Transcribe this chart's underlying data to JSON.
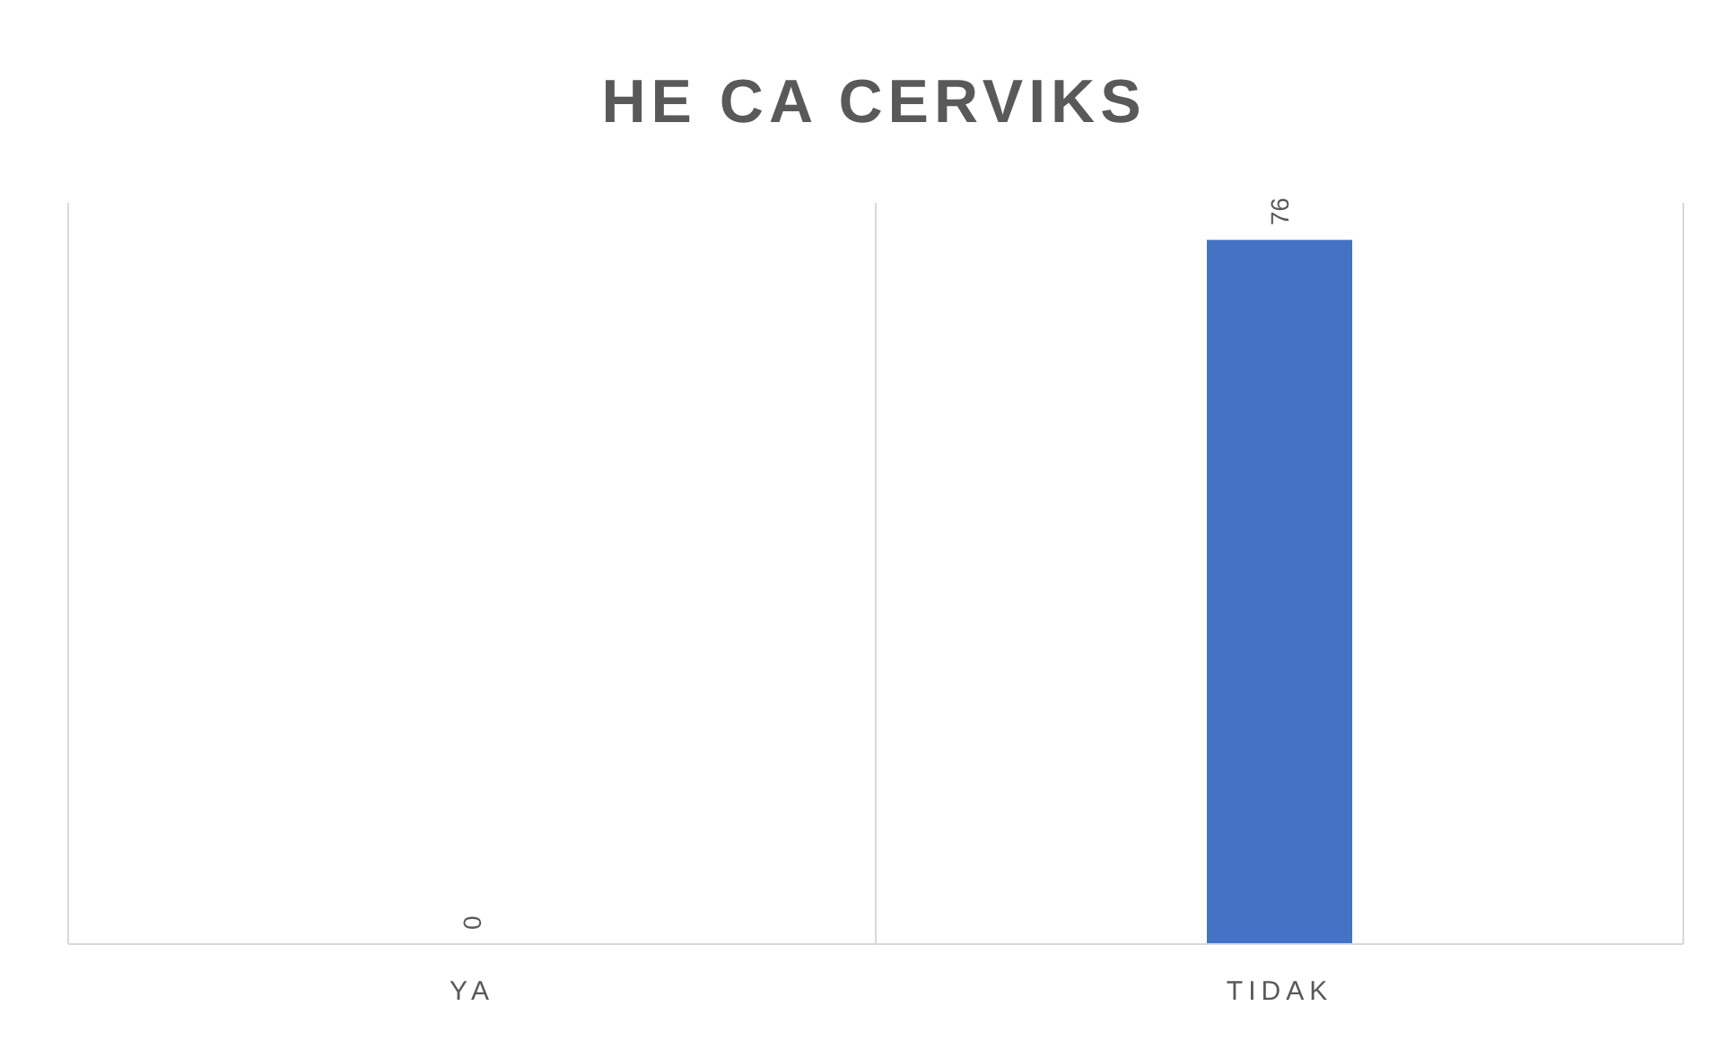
{
  "chart_data": {
    "type": "bar",
    "title": "HE CA CERVIKS",
    "categories": [
      "YA",
      "TIDAK"
    ],
    "values": [
      0,
      76
    ],
    "color": "#4472c4",
    "ylim": [
      0,
      80
    ],
    "data_labels": true,
    "grid": "x"
  }
}
